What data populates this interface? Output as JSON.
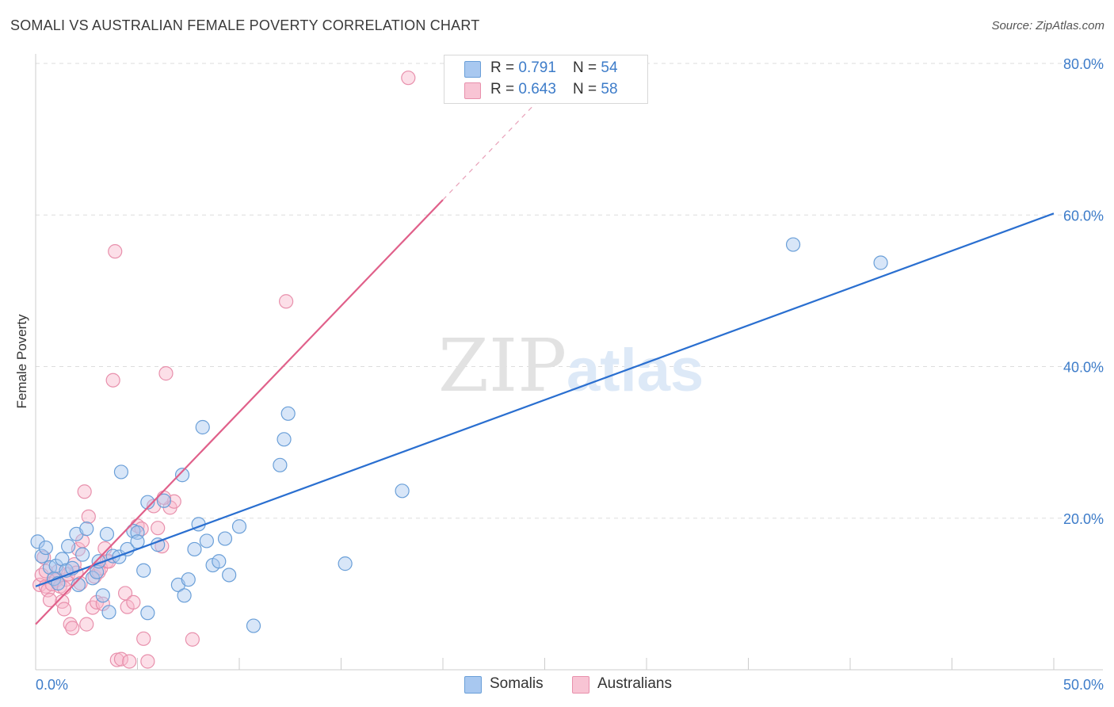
{
  "header": {
    "title": "SOMALI VS AUSTRALIAN FEMALE POVERTY CORRELATION CHART",
    "source": "Source: ZipAtlas.com"
  },
  "watermark": {
    "zip": "ZIP",
    "atlas": "atlas"
  },
  "legend_top": {
    "rows": [
      {
        "r_label": "R = ",
        "r_value": "0.791",
        "n_label": "N = ",
        "n_value": "54"
      },
      {
        "r_label": "R = ",
        "r_value": "0.643",
        "n_label": "N = ",
        "n_value": "58"
      }
    ]
  },
  "legend_bottom": {
    "somalis": "Somalis",
    "australians": "Australians"
  },
  "colors": {
    "somali_fill": "#a8c8f0",
    "somali_stroke": "#6a9fd8",
    "somali_line": "#2a6fd0",
    "australian_fill": "#f8b8cc",
    "australian_stroke": "#e890ac",
    "australian_line": "#e0608a",
    "tick": "#3d7cc9",
    "grid": "#dddddd"
  },
  "chart_data": {
    "type": "scatter",
    "title": "SOMALI VS AUSTRALIAN FEMALE POVERTY CORRELATION CHART",
    "xlabel": "",
    "ylabel": "Female Poverty",
    "xlim": [
      0,
      50
    ],
    "ylim": [
      0,
      80
    ],
    "x_tick_labels": [
      "0.0%",
      "50.0%"
    ],
    "y_ticks": [
      20,
      40,
      60,
      80
    ],
    "y_tick_labels": [
      "20.0%",
      "40.0%",
      "60.0%",
      "80.0%"
    ],
    "series": [
      {
        "name": "Somalis",
        "r": 0.791,
        "n": 54,
        "trend": {
          "x": [
            0,
            50
          ],
          "y": [
            11.0,
            60.2
          ]
        },
        "points": [
          [
            0.1,
            16.9
          ],
          [
            0.3,
            15.0
          ],
          [
            0.5,
            16.1
          ],
          [
            0.7,
            13.5
          ],
          [
            0.9,
            12.0
          ],
          [
            1.0,
            13.7
          ],
          [
            1.1,
            11.4
          ],
          [
            1.3,
            14.6
          ],
          [
            1.5,
            13.1
          ],
          [
            1.6,
            16.3
          ],
          [
            1.8,
            13.4
          ],
          [
            2.0,
            17.9
          ],
          [
            2.1,
            11.2
          ],
          [
            2.3,
            15.2
          ],
          [
            2.5,
            18.6
          ],
          [
            2.8,
            12.1
          ],
          [
            3.0,
            12.9
          ],
          [
            3.1,
            14.3
          ],
          [
            3.3,
            9.8
          ],
          [
            3.5,
            17.9
          ],
          [
            3.6,
            7.6
          ],
          [
            3.8,
            15.0
          ],
          [
            4.1,
            14.9
          ],
          [
            4.2,
            26.1
          ],
          [
            4.5,
            15.9
          ],
          [
            4.8,
            18.3
          ],
          [
            5.0,
            18.1
          ],
          [
            5.0,
            16.9
          ],
          [
            5.3,
            13.1
          ],
          [
            5.5,
            7.5
          ],
          [
            5.5,
            22.1
          ],
          [
            6.0,
            16.5
          ],
          [
            6.3,
            22.3
          ],
          [
            7.0,
            11.2
          ],
          [
            7.2,
            25.7
          ],
          [
            7.3,
            9.8
          ],
          [
            7.5,
            11.9
          ],
          [
            7.8,
            15.9
          ],
          [
            8.0,
            19.2
          ],
          [
            8.2,
            32.0
          ],
          [
            8.4,
            17.0
          ],
          [
            8.7,
            13.8
          ],
          [
            9.0,
            14.3
          ],
          [
            9.3,
            17.3
          ],
          [
            9.5,
            12.5
          ],
          [
            10.0,
            18.9
          ],
          [
            10.7,
            5.8
          ],
          [
            12.0,
            27.0
          ],
          [
            12.2,
            30.4
          ],
          [
            12.4,
            33.8
          ],
          [
            15.2,
            14.0
          ],
          [
            18.0,
            23.6
          ],
          [
            37.2,
            56.1
          ],
          [
            41.5,
            53.7
          ]
        ]
      },
      {
        "name": "Australians",
        "r": 0.643,
        "n": 58,
        "trend": {
          "x": [
            0,
            20
          ],
          "y": [
            6.0,
            62.0
          ]
        },
        "points": [
          [
            0.2,
            11.2
          ],
          [
            0.3,
            12.5
          ],
          [
            0.4,
            14.8
          ],
          [
            0.5,
            11.0
          ],
          [
            0.6,
            10.5
          ],
          [
            0.7,
            9.2
          ],
          [
            0.8,
            11.3
          ],
          [
            0.9,
            12.1
          ],
          [
            1.0,
            11.8
          ],
          [
            1.1,
            13.0
          ],
          [
            1.2,
            11.0
          ],
          [
            1.3,
            9.0
          ],
          [
            1.4,
            8.0
          ],
          [
            1.5,
            11.9
          ],
          [
            1.6,
            12.6
          ],
          [
            1.7,
            6.0
          ],
          [
            1.8,
            5.5
          ],
          [
            1.9,
            13.9
          ],
          [
            2.0,
            12.8
          ],
          [
            2.1,
            15.9
          ],
          [
            2.2,
            11.4
          ],
          [
            2.3,
            17.0
          ],
          [
            2.4,
            23.5
          ],
          [
            2.5,
            6.0
          ],
          [
            2.6,
            20.2
          ],
          [
            2.8,
            8.2
          ],
          [
            2.9,
            12.3
          ],
          [
            3.0,
            8.9
          ],
          [
            3.1,
            12.9
          ],
          [
            3.2,
            13.4
          ],
          [
            3.3,
            8.7
          ],
          [
            3.4,
            16.0
          ],
          [
            3.5,
            14.3
          ],
          [
            3.6,
            14.3
          ],
          [
            3.8,
            38.2
          ],
          [
            3.9,
            55.2
          ],
          [
            4.0,
            1.3
          ],
          [
            4.2,
            1.4
          ],
          [
            4.4,
            10.1
          ],
          [
            4.5,
            8.3
          ],
          [
            4.6,
            1.1
          ],
          [
            4.8,
            8.9
          ],
          [
            5.0,
            19.0
          ],
          [
            5.2,
            18.6
          ],
          [
            5.3,
            4.1
          ],
          [
            5.5,
            1.1
          ],
          [
            5.8,
            21.6
          ],
          [
            6.0,
            18.7
          ],
          [
            6.2,
            16.3
          ],
          [
            6.4,
            39.1
          ],
          [
            6.6,
            21.4
          ],
          [
            6.8,
            22.2
          ],
          [
            7.7,
            4.0
          ],
          [
            12.3,
            48.6
          ],
          [
            18.3,
            78.1
          ],
          [
            6.3,
            22.7
          ],
          [
            1.4,
            10.8
          ],
          [
            0.5,
            13.0
          ]
        ]
      }
    ]
  }
}
